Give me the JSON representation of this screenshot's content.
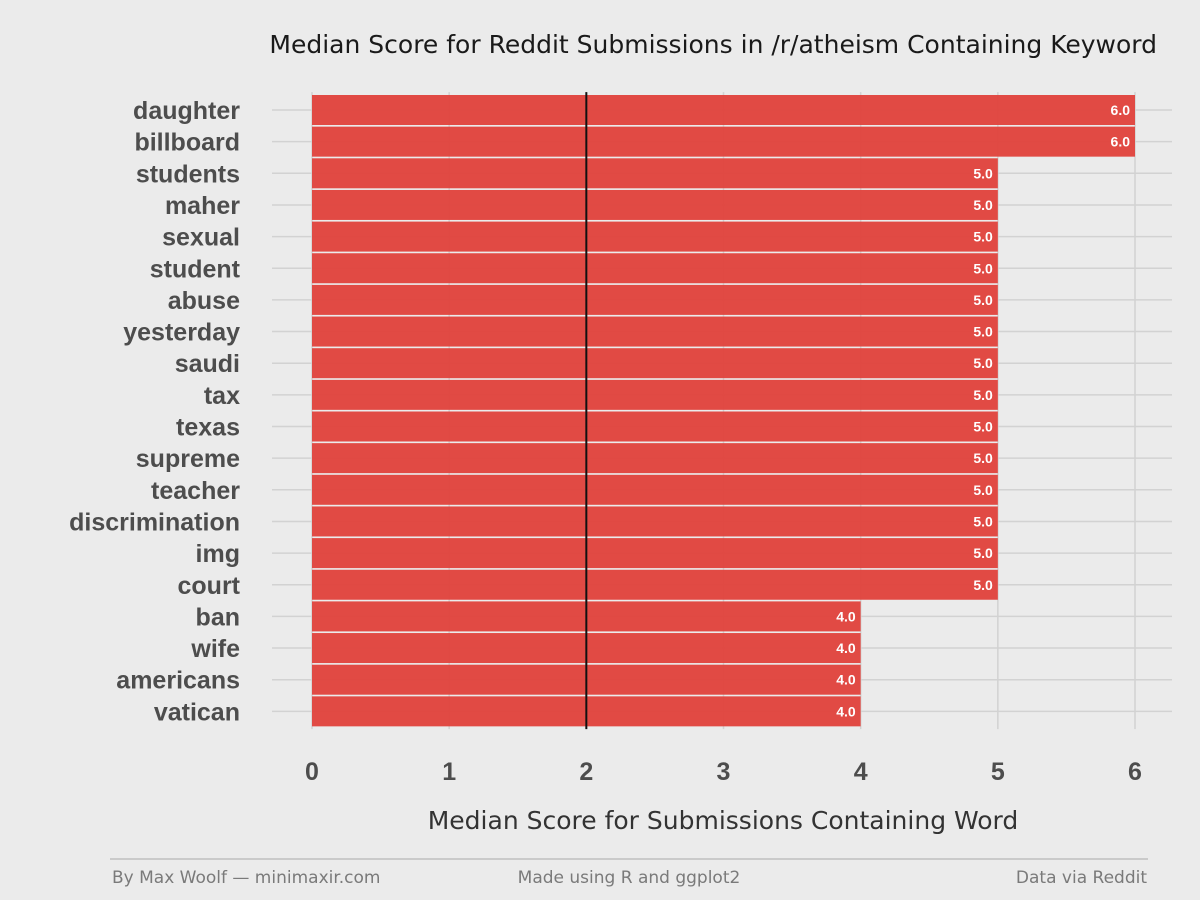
{
  "chart_data": {
    "type": "bar",
    "orientation": "horizontal",
    "title": "Median Score for Reddit Submissions in /r/atheism Containing Keyword",
    "xlabel": "Median Score for Submissions Containing Word",
    "ylabel": "",
    "xlim": [
      0,
      6
    ],
    "xticks": [
      0,
      1,
      2,
      3,
      4,
      5,
      6
    ],
    "reference_line": 2,
    "categories": [
      "daughter",
      "billboard",
      "students",
      "maher",
      "sexual",
      "student",
      "abuse",
      "yesterday",
      "saudi",
      "tax",
      "texas",
      "supreme",
      "teacher",
      "discrimination",
      "img",
      "court",
      "ban",
      "wife",
      "americans",
      "vatican"
    ],
    "values": [
      6,
      6,
      5,
      5,
      5,
      5,
      5,
      5,
      5,
      5,
      5,
      5,
      5,
      5,
      5,
      5,
      4,
      4,
      4,
      4
    ],
    "value_labels": [
      "6.0",
      "6.0",
      "5.0",
      "5.0",
      "5.0",
      "5.0",
      "5.0",
      "5.0",
      "5.0",
      "5.0",
      "5.0",
      "5.0",
      "5.0",
      "5.0",
      "5.0",
      "5.0",
      "4.0",
      "4.0",
      "4.0",
      "4.0"
    ],
    "bar_color": "#e0413b",
    "grid": true
  },
  "footer": {
    "left": "By Max Woolf — minimaxir.com",
    "center": "Made using R and ggplot2",
    "right": "Data via Reddit"
  }
}
